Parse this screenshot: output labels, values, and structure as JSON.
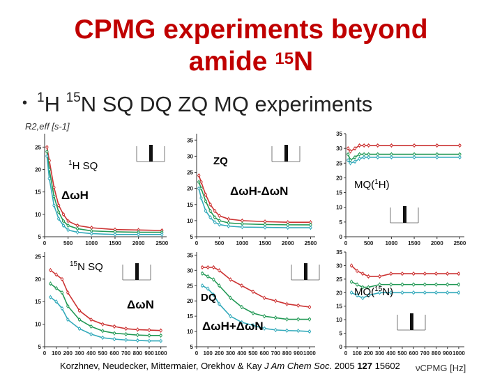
{
  "slide": {
    "title_line1": "CPMG experiments beyond",
    "title_line2_main": "amide ",
    "title_line2_sup": "15",
    "title_line2_end": "N",
    "bullet_sup1": "1",
    "bullet_h": "H ",
    "bullet_sup2": "15",
    "bullet_rest": "N SQ DQ ZQ MQ experiments",
    "citation_authors": "Korzhnev, Neudecker, Mittermaier, Orekhov & Kay ",
    "citation_journal": "J Am Chem Soc",
    "citation_year": ". 2005 ",
    "citation_volume": "127",
    "citation_page": " 15602",
    "ylabel": "R2,eff [s-1]",
    "xlabel": "νCPMG [Hz]"
  },
  "colors": {
    "title": "#c00000",
    "red": "#cc3333",
    "green": "#229955",
    "teal": "#33aabb",
    "axis": "#333333"
  },
  "chart_data": [
    {
      "type": "line",
      "label_parts": [
        "1",
        "H SQ"
      ],
      "shift_label": "ΔωH",
      "xlim": [
        0,
        2600
      ],
      "ylim": [
        5,
        28
      ],
      "xticks": [
        0,
        500,
        1000,
        1500,
        2000,
        2500
      ],
      "yticks": [
        5,
        10,
        15,
        20,
        25
      ],
      "x": [
        50,
        100,
        200,
        300,
        400,
        500,
        700,
        1000,
        1500,
        2000,
        2500
      ],
      "series": [
        {
          "color": "red",
          "values": [
            25,
            22,
            16,
            12,
            10,
            8.5,
            7.5,
            7,
            6.6,
            6.5,
            6.4
          ]
        },
        {
          "color": "green",
          "values": [
            24,
            20,
            14,
            10.5,
            8.5,
            7.5,
            6.8,
            6.3,
            6.1,
            6.0,
            6.0
          ]
        },
        {
          "color": "teal",
          "values": [
            23,
            18,
            12,
            9,
            7.5,
            6.5,
            6.0,
            5.7,
            5.5,
            5.5,
            5.5
          ]
        }
      ]
    },
    {
      "type": "line",
      "label_parts": [
        "ZQ"
      ],
      "shift_label": "ΔωH-ΔωN",
      "xlim": [
        0,
        2600
      ],
      "ylim": [
        5,
        37
      ],
      "xticks": [
        0,
        500,
        1000,
        1500,
        2000,
        2500
      ],
      "yticks": [
        5,
        10,
        15,
        20,
        25,
        30,
        35
      ],
      "x": [
        50,
        100,
        200,
        300,
        400,
        500,
        700,
        1000,
        1500,
        2000,
        2500
      ],
      "series": [
        {
          "color": "red",
          "values": [
            24,
            22,
            18,
            15,
            13,
            11.5,
            10.5,
            10,
            9.7,
            9.5,
            9.5
          ]
        },
        {
          "color": "green",
          "values": [
            22,
            20,
            16,
            13,
            11,
            10,
            9.3,
            9.0,
            8.8,
            8.7,
            8.7
          ]
        },
        {
          "color": "teal",
          "values": [
            20,
            17,
            13,
            11,
            9.5,
            8.8,
            8.3,
            8.0,
            7.9,
            7.8,
            7.8
          ]
        }
      ]
    },
    {
      "type": "line",
      "label_parts": [
        "MQ(",
        "1",
        "H)"
      ],
      "shift_label": "",
      "xlim": [
        0,
        2600
      ],
      "ylim": [
        0,
        35
      ],
      "xticks": [
        0,
        500,
        1000,
        1500,
        2000,
        2500
      ],
      "yticks": [
        0,
        5,
        10,
        15,
        20,
        25,
        30,
        35
      ],
      "x": [
        50,
        100,
        200,
        300,
        400,
        500,
        700,
        1000,
        1500,
        2000,
        2500
      ],
      "series": [
        {
          "color": "red",
          "values": [
            30,
            29,
            30,
            31,
            31,
            31,
            31,
            31,
            31,
            31,
            31
          ]
        },
        {
          "color": "green",
          "values": [
            28,
            26,
            27,
            28,
            28,
            28,
            28,
            28,
            28,
            28,
            28
          ]
        },
        {
          "color": "teal",
          "values": [
            26,
            25,
            25.5,
            26.5,
            27,
            27,
            27,
            27,
            27,
            27,
            27
          ]
        }
      ]
    },
    {
      "type": "line",
      "label_parts": [
        "15",
        "N SQ"
      ],
      "shift_label": "ΔωN",
      "xlim": [
        0,
        1050
      ],
      "ylim": [
        5,
        26
      ],
      "xticks": [
        0,
        100,
        200,
        300,
        400,
        500,
        600,
        700,
        800,
        900,
        1000
      ],
      "yticks": [
        5,
        10,
        15,
        20,
        25
      ],
      "x": [
        50,
        100,
        150,
        200,
        300,
        400,
        500,
        600,
        700,
        800,
        900,
        1000
      ],
      "series": [
        {
          "color": "red",
          "values": [
            22,
            21,
            20,
            17,
            13,
            11,
            10,
            9.5,
            9,
            8.8,
            8.7,
            8.6
          ]
        },
        {
          "color": "green",
          "values": [
            19,
            18,
            17,
            14,
            11,
            9.5,
            8.5,
            8,
            7.8,
            7.6,
            7.5,
            7.5
          ]
        },
        {
          "color": "teal",
          "values": [
            16,
            15,
            13.5,
            11,
            9,
            7.8,
            7,
            6.7,
            6.5,
            6.4,
            6.3,
            6.3
          ]
        }
      ]
    },
    {
      "type": "line",
      "label_parts": [
        "DQ"
      ],
      "shift_label": "ΔωH+ΔωN",
      "xlim": [
        0,
        1050
      ],
      "ylim": [
        5,
        36
      ],
      "xticks": [
        0,
        100,
        200,
        300,
        400,
        500,
        600,
        700,
        800,
        900,
        1000
      ],
      "yticks": [
        5,
        10,
        15,
        20,
        25,
        30,
        35
      ],
      "x": [
        50,
        100,
        150,
        200,
        300,
        400,
        500,
        600,
        700,
        800,
        900,
        1000
      ],
      "series": [
        {
          "color": "red",
          "values": [
            31,
            31,
            31,
            30,
            27,
            25,
            23,
            21,
            20,
            19,
            18.5,
            18
          ]
        },
        {
          "color": "green",
          "values": [
            29,
            28,
            27,
            25,
            21,
            18,
            16,
            15,
            14.5,
            14,
            14,
            14
          ]
        },
        {
          "color": "teal",
          "values": [
            25,
            24,
            22,
            19,
            15,
            13,
            12,
            11,
            10.5,
            10.3,
            10.2,
            10
          ]
        }
      ]
    },
    {
      "type": "line",
      "label_parts": [
        "MQ(",
        "15",
        "N)"
      ],
      "shift_label": "",
      "xlim": [
        0,
        1050
      ],
      "ylim": [
        0,
        35
      ],
      "xticks": [
        0,
        100,
        200,
        300,
        400,
        500,
        600,
        700,
        800,
        900,
        1000
      ],
      "yticks": [
        0,
        5,
        10,
        15,
        20,
        25,
        30,
        35
      ],
      "x": [
        50,
        100,
        150,
        200,
        300,
        400,
        500,
        600,
        700,
        800,
        900,
        1000
      ],
      "series": [
        {
          "color": "red",
          "values": [
            30,
            28,
            27,
            26,
            26,
            27,
            27,
            27,
            27,
            27,
            27,
            27
          ]
        },
        {
          "color": "green",
          "values": [
            24,
            23,
            22,
            22,
            23,
            23,
            23,
            23,
            23,
            23,
            23,
            23
          ]
        },
        {
          "color": "teal",
          "values": [
            20,
            19,
            18,
            19,
            20,
            20,
            20,
            20,
            20,
            20,
            20,
            20
          ]
        }
      ]
    }
  ]
}
